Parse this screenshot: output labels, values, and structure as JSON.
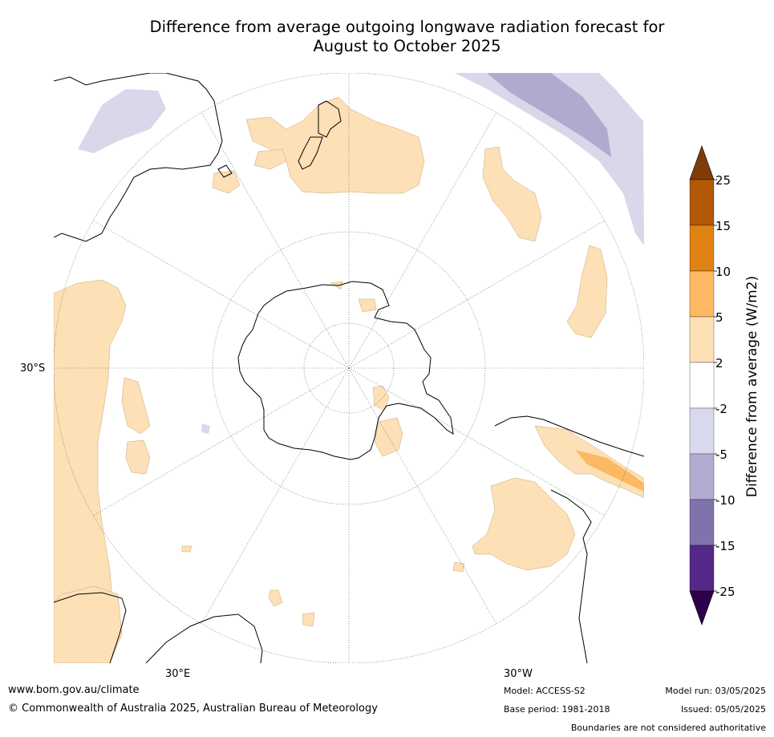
{
  "title": {
    "line1": "Difference from average outgoing longwave radiation forecast for",
    "line2": "August to October 2025"
  },
  "map": {
    "projection": "south-polar-stereographic",
    "graticule_labels": {
      "lat": "30°S",
      "lon_left": "30°E",
      "lon_right": "30°W"
    },
    "colors": {
      "land_border": "#000000",
      "graticule": "#555555",
      "anomaly_neg_2_5": "#d8d8ea",
      "anomaly_neg_5_10": "#b1aad0",
      "anomaly_pos_2_5": "#fde0b6",
      "anomaly_pos_5_10": "#fdb863",
      "anomaly_pos_10_15": "#e08214"
    }
  },
  "colorbar": {
    "label": "Difference from average (W/m2)",
    "ticks": [
      "25",
      "15",
      "10",
      "5",
      "2",
      "-2",
      "-5",
      "-10",
      "-15",
      "-25"
    ],
    "colors": [
      "#b35806",
      "#e08214",
      "#fdb863",
      "#fde0b6",
      "#ffffff",
      "#d8daeb",
      "#b2abd2",
      "#8073ac",
      "#542788"
    ],
    "extend_top_color": "#7f3b08",
    "extend_bottom_color": "#2d004b"
  },
  "footer": {
    "website": "www.bom.gov.au/climate",
    "copyright": "© Commonwealth of Australia 2025, Australian Bureau of Meteorology",
    "model": "Model: ACCESS-S2",
    "base_period": "Base period: 1981-2018",
    "model_run": "Model run: 03/05/2025",
    "issued": "Issued: 05/05/2025",
    "boundaries": "Boundaries are not considered authoritative"
  }
}
